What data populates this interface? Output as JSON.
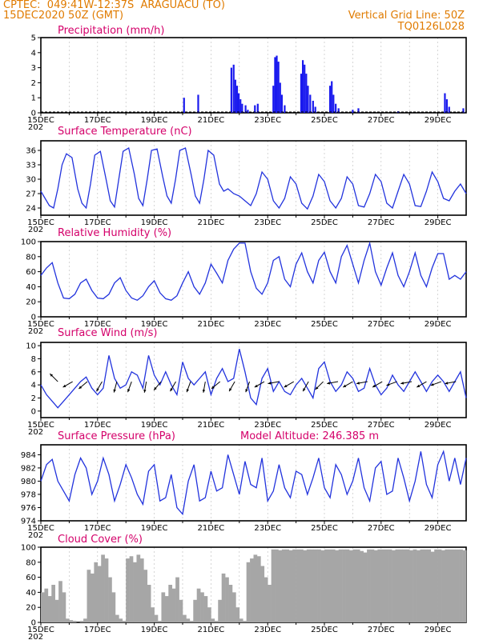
{
  "header": {
    "source": "CPTEC:",
    "coords": "049:41W-12:37S",
    "location": "ARAGUACU (TO)",
    "init_time": "15DEC2020 50Z (GMT)",
    "grid_note": "Vertical Grid Line: 50Z",
    "code": "TQ0126L028"
  },
  "x_axis": {
    "categories": [
      "15DEC",
      "17DEC",
      "19DEC",
      "21DEC",
      "23DEC",
      "25DEC",
      "27DEC",
      "29DEC"
    ],
    "year_label": "202"
  },
  "colors": {
    "title": "#d4006a",
    "header": "#e07b00",
    "line": "#2233dd",
    "bar": "#1a1aee",
    "cloud": "#a6a6a6"
  },
  "chart_data": [
    {
      "type": "bar",
      "title": "Precipitation (mm/h)",
      "ylim": [
        0,
        5
      ],
      "yticks": [
        "0",
        "1",
        "2",
        "3",
        "4",
        "5"
      ],
      "x_unit": "days since 15DEC 00Z",
      "x": [
        5.05,
        5.55,
        6.72,
        6.8,
        6.86,
        6.92,
        6.98,
        7.04,
        7.1,
        7.22,
        7.3,
        7.55,
        7.65,
        8.2,
        8.26,
        8.32,
        8.38,
        8.44,
        8.5,
        8.6,
        9.18,
        9.24,
        9.3,
        9.36,
        9.42,
        9.5,
        9.6,
        9.68,
        10.2,
        10.26,
        10.32,
        10.4,
        10.5,
        11.0,
        11.2,
        12.6,
        14.25,
        14.32,
        14.4,
        14.9
      ],
      "values": [
        1.0,
        1.2,
        3.0,
        3.2,
        2.2,
        1.8,
        1.3,
        0.9,
        0.6,
        0.5,
        0.2,
        0.5,
        0.6,
        1.8,
        3.7,
        3.8,
        3.4,
        2.0,
        1.2,
        0.5,
        2.6,
        3.5,
        3.2,
        2.6,
        1.8,
        1.2,
        0.8,
        0.4,
        1.8,
        2.1,
        1.2,
        0.6,
        0.3,
        0.2,
        0.3,
        0.1,
        1.3,
        0.9,
        0.4,
        0.3
      ]
    },
    {
      "type": "line",
      "title": "Surface Temperature (nC)",
      "ylim": [
        22.5,
        38
      ],
      "yticks": [
        "24",
        "27",
        "30",
        "33",
        "36"
      ],
      "x_unit": "days since 15DEC 00Z",
      "x": [
        0.0,
        0.15,
        0.3,
        0.45,
        0.6,
        0.75,
        0.9,
        1.1,
        1.3,
        1.45,
        1.6,
        1.75,
        1.9,
        2.1,
        2.3,
        2.45,
        2.6,
        2.75,
        2.9,
        3.1,
        3.3,
        3.45,
        3.6,
        3.75,
        3.9,
        4.1,
        4.3,
        4.45,
        4.6,
        4.75,
        4.9,
        5.1,
        5.3,
        5.45,
        5.6,
        5.75,
        5.9,
        6.1,
        6.3,
        6.45,
        6.6,
        6.8,
        7.0,
        7.2,
        7.4,
        7.6,
        7.8,
        8.0,
        8.2,
        8.4,
        8.6,
        8.8,
        9.0,
        9.2,
        9.4,
        9.6,
        9.8,
        10.0,
        10.2,
        10.4,
        10.6,
        10.8,
        11.0,
        11.2,
        11.4,
        11.6,
        11.8,
        12.0,
        12.2,
        12.4,
        12.6,
        12.8,
        13.0,
        13.2,
        13.4,
        13.6,
        13.8,
        14.0,
        14.2,
        14.4,
        14.6,
        14.8,
        15.0
      ],
      "values": [
        27.5,
        26.0,
        24.5,
        24.0,
        28.0,
        33.0,
        35.3,
        34.5,
        28.0,
        25.0,
        24.0,
        29.0,
        35.0,
        35.8,
        30.0,
        25.5,
        24.2,
        30.0,
        35.8,
        36.5,
        31.0,
        26.0,
        24.5,
        30.0,
        36.0,
        36.3,
        30.5,
        26.5,
        25.0,
        30.0,
        36.0,
        36.5,
        31.0,
        26.5,
        25.0,
        30.0,
        36.0,
        35.0,
        29.0,
        27.5,
        28.0,
        27.0,
        26.5,
        25.5,
        24.5,
        27.0,
        31.5,
        30.0,
        25.5,
        24.0,
        26.0,
        30.5,
        29.0,
        25.0,
        23.8,
        26.5,
        31.0,
        29.5,
        25.5,
        24.0,
        26.0,
        30.5,
        29.0,
        24.5,
        24.2,
        27.0,
        31.0,
        29.5,
        25.0,
        24.0,
        27.5,
        31.0,
        29.0,
        24.5,
        24.3,
        27.5,
        31.5,
        29.5,
        26.0,
        25.5,
        27.5,
        29.0,
        27.0
      ]
    },
    {
      "type": "line",
      "title": "Relative Humidity (%)",
      "ylim": [
        0,
        100
      ],
      "yticks": [
        "0",
        "20",
        "40",
        "60",
        "80",
        "100"
      ],
      "x_unit": "days since 15DEC 00Z",
      "x": [
        0.0,
        0.2,
        0.4,
        0.6,
        0.8,
        1.0,
        1.2,
        1.4,
        1.6,
        1.8,
        2.0,
        2.2,
        2.4,
        2.6,
        2.8,
        3.0,
        3.2,
        3.4,
        3.6,
        3.8,
        4.0,
        4.2,
        4.4,
        4.6,
        4.8,
        5.0,
        5.2,
        5.4,
        5.6,
        5.8,
        6.0,
        6.2,
        6.4,
        6.6,
        6.8,
        7.0,
        7.2,
        7.4,
        7.6,
        7.8,
        8.0,
        8.2,
        8.4,
        8.6,
        8.8,
        9.0,
        9.2,
        9.4,
        9.6,
        9.8,
        10.0,
        10.2,
        10.4,
        10.6,
        10.8,
        11.0,
        11.2,
        11.4,
        11.6,
        11.8,
        12.0,
        12.2,
        12.4,
        12.6,
        12.8,
        13.0,
        13.2,
        13.4,
        13.6,
        13.8,
        14.0,
        14.2,
        14.4,
        14.6,
        14.8,
        15.0
      ],
      "values": [
        55,
        65,
        72,
        45,
        25,
        24,
        30,
        45,
        50,
        35,
        25,
        24,
        30,
        45,
        52,
        35,
        25,
        22,
        28,
        40,
        48,
        32,
        24,
        22,
        28,
        45,
        60,
        40,
        30,
        45,
        70,
        58,
        45,
        75,
        90,
        98,
        98,
        60,
        38,
        30,
        45,
        75,
        80,
        50,
        40,
        70,
        85,
        60,
        45,
        75,
        86,
        60,
        45,
        80,
        95,
        70,
        45,
        75,
        98,
        60,
        42,
        65,
        85,
        55,
        40,
        60,
        85,
        55,
        40,
        65,
        84,
        84,
        50,
        55,
        50,
        60
      ]
    },
    {
      "type": "line",
      "title": "Surface Wind (m/s)",
      "ylim": [
        -1,
        10.5
      ],
      "yticks": [
        "0",
        "2",
        "4",
        "6",
        "8",
        "10"
      ],
      "x_unit": "days since 15DEC 00Z",
      "x": [
        0.0,
        0.2,
        0.4,
        0.6,
        0.8,
        1.0,
        1.2,
        1.4,
        1.6,
        1.8,
        2.0,
        2.2,
        2.4,
        2.6,
        2.8,
        3.0,
        3.2,
        3.4,
        3.6,
        3.8,
        4.0,
        4.2,
        4.4,
        4.6,
        4.8,
        5.0,
        5.2,
        5.4,
        5.6,
        5.8,
        6.0,
        6.2,
        6.4,
        6.6,
        6.8,
        7.0,
        7.2,
        7.4,
        7.6,
        7.8,
        8.0,
        8.2,
        8.4,
        8.6,
        8.8,
        9.0,
        9.2,
        9.4,
        9.6,
        9.8,
        10.0,
        10.2,
        10.4,
        10.6,
        10.8,
        11.0,
        11.2,
        11.4,
        11.6,
        11.8,
        12.0,
        12.2,
        12.4,
        12.6,
        12.8,
        13.0,
        13.2,
        13.4,
        13.6,
        13.8,
        14.0,
        14.2,
        14.4,
        14.6,
        14.8,
        15.0
      ],
      "values": [
        4.0,
        2.5,
        1.5,
        0.5,
        1.5,
        2.5,
        3.5,
        4.5,
        5.2,
        3.5,
        2.5,
        3.5,
        8.5,
        5.0,
        3.5,
        4.0,
        6.0,
        5.5,
        3.5,
        8.5,
        5.5,
        4.0,
        6.0,
        4.0,
        2.5,
        7.5,
        5.0,
        4.0,
        5.0,
        6.0,
        2.5,
        5.0,
        6.5,
        4.5,
        5.0,
        9.5,
        6.0,
        2.0,
        1.0,
        5.0,
        6.5,
        3.0,
        4.5,
        3.0,
        2.5,
        4.0,
        5.0,
        3.5,
        2.0,
        6.5,
        7.5,
        4.5,
        3.0,
        4.0,
        6.0,
        5.0,
        3.0,
        3.5,
        6.5,
        4.0,
        2.5,
        3.5,
        5.5,
        4.0,
        3.0,
        4.5,
        6.0,
        4.5,
        3.0,
        4.5,
        5.5,
        4.5,
        3.0,
        4.5,
        6.0,
        2.0
      ],
      "arrows_from_deg": [
        135,
        60,
        50,
        30,
        15,
        20,
        10,
        40,
        30,
        20,
        10,
        50,
        30,
        20,
        60,
        80,
        60,
        30,
        45,
        80,
        60,
        80,
        60,
        70,
        80,
        60,
        70,
        80
      ]
    },
    {
      "type": "line",
      "title": "Surface Pressure (hPa)",
      "annotation": "Model Altitude: 246.385 m",
      "ylim": [
        974,
        985.5
      ],
      "yticks": [
        "974",
        "976",
        "978",
        "980",
        "982",
        "984"
      ],
      "x_unit": "days since 15DEC 00Z",
      "x": [
        0.0,
        0.2,
        0.4,
        0.6,
        0.8,
        1.0,
        1.2,
        1.4,
        1.6,
        1.8,
        2.0,
        2.2,
        2.4,
        2.6,
        2.8,
        3.0,
        3.2,
        3.4,
        3.6,
        3.8,
        4.0,
        4.2,
        4.4,
        4.6,
        4.8,
        5.0,
        5.2,
        5.4,
        5.6,
        5.8,
        6.0,
        6.2,
        6.4,
        6.6,
        6.8,
        7.0,
        7.2,
        7.4,
        7.6,
        7.8,
        8.0,
        8.2,
        8.4,
        8.6,
        8.8,
        9.0,
        9.2,
        9.4,
        9.6,
        9.8,
        10.0,
        10.2,
        10.4,
        10.6,
        10.8,
        11.0,
        11.2,
        11.4,
        11.6,
        11.8,
        12.0,
        12.2,
        12.4,
        12.6,
        12.8,
        13.0,
        13.2,
        13.4,
        13.6,
        13.8,
        14.0,
        14.2,
        14.4,
        14.6,
        14.8,
        15.0
      ],
      "values": [
        980.0,
        982.5,
        983.3,
        980.0,
        978.5,
        977.0,
        981.0,
        983.5,
        982.0,
        978.0,
        980.0,
        983.5,
        981.0,
        977.0,
        979.5,
        982.5,
        980.5,
        978.0,
        976.5,
        981.5,
        982.5,
        977.0,
        977.5,
        981.0,
        976.0,
        975.0,
        980.0,
        982.5,
        977.0,
        977.5,
        981.5,
        978.5,
        979.0,
        984.0,
        981.0,
        978.0,
        983.0,
        979.5,
        979.0,
        983.5,
        977.0,
        978.5,
        982.5,
        979.0,
        977.5,
        981.5,
        981.0,
        978.0,
        980.5,
        983.5,
        979.0,
        977.5,
        982.5,
        981.0,
        978.0,
        980.0,
        983.5,
        979.0,
        977.0,
        982.0,
        983.0,
        978.0,
        978.5,
        983.5,
        980.5,
        977.0,
        980.0,
        984.5,
        979.5,
        977.5,
        982.5,
        984.5,
        980.0,
        983.5,
        979.5,
        983.5
      ]
    },
    {
      "type": "bar",
      "title": "Cloud Cover (%)",
      "ylim": [
        0,
        100
      ],
      "yticks": [
        "0",
        "20",
        "40",
        "60",
        "80",
        "100"
      ],
      "x_unit": "days since 15DEC 00Z",
      "x_step": 0.125,
      "values": [
        40,
        45,
        35,
        50,
        30,
        55,
        40,
        5,
        3,
        2,
        0,
        2,
        5,
        70,
        65,
        80,
        75,
        90,
        85,
        60,
        40,
        10,
        5,
        2,
        85,
        88,
        80,
        90,
        85,
        70,
        50,
        20,
        10,
        2,
        40,
        35,
        50,
        45,
        60,
        30,
        10,
        5,
        2,
        30,
        45,
        40,
        35,
        20,
        5,
        2,
        30,
        65,
        60,
        50,
        40,
        20,
        5,
        2,
        80,
        85,
        90,
        88,
        75,
        60,
        50,
        97,
        97,
        96,
        97,
        97,
        96,
        97,
        97,
        97,
        96,
        97,
        97,
        97,
        97,
        96,
        97,
        97,
        97,
        96,
        97,
        97,
        97,
        96,
        97,
        97,
        95,
        93,
        97,
        97,
        96,
        97,
        97,
        97,
        97,
        96,
        97,
        97,
        97,
        97,
        96,
        97,
        96,
        97,
        97,
        97,
        94,
        97,
        97,
        96,
        97,
        97,
        97,
        97,
        97,
        96
      ]
    }
  ]
}
